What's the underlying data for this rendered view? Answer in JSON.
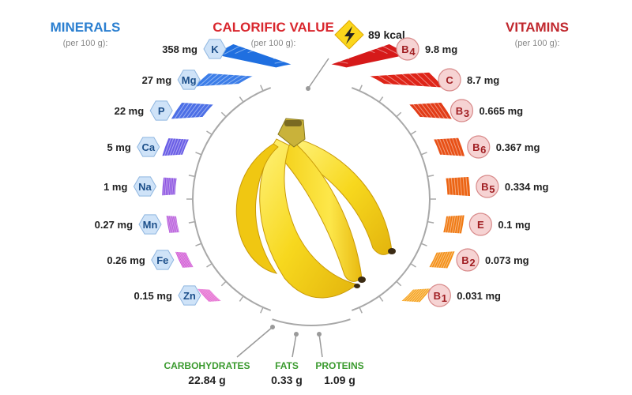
{
  "minerals": {
    "title": "MINERALS",
    "subtitle": "(per 100 g):",
    "items": [
      {
        "symbol": "K",
        "value": "358 mg",
        "amount": 358
      },
      {
        "symbol": "Mg",
        "value": "27 mg",
        "amount": 27
      },
      {
        "symbol": "P",
        "value": "22 mg",
        "amount": 22
      },
      {
        "symbol": "Ca",
        "value": "5 mg",
        "amount": 5
      },
      {
        "symbol": "Na",
        "value": "1 mg",
        "amount": 1
      },
      {
        "symbol": "Mn",
        "value": "0.27 mg",
        "amount": 0.27
      },
      {
        "symbol": "Fe",
        "value": "0.26 mg",
        "amount": 0.26
      },
      {
        "symbol": "Zn",
        "value": "0.15 mg",
        "amount": 0.15
      }
    ]
  },
  "calorific": {
    "title": "CALORIFIC VALUE",
    "subtitle": "(per 100 g):",
    "value": "89 kcal",
    "icon": "lightning-icon"
  },
  "vitamins": {
    "title": "VITAMINS",
    "subtitle": "(per 100 g):",
    "items": [
      {
        "symbol": "B",
        "sub": "4",
        "value": "9.8 mg",
        "amount": 9.8
      },
      {
        "symbol": "C",
        "sub": "",
        "value": "8.7 mg",
        "amount": 8.7
      },
      {
        "symbol": "B",
        "sub": "3",
        "value": "0.665 mg",
        "amount": 0.665
      },
      {
        "symbol": "B",
        "sub": "6",
        "value": "0.367 mg",
        "amount": 0.367
      },
      {
        "symbol": "B",
        "sub": "5",
        "value": "0.334 mg",
        "amount": 0.334
      },
      {
        "symbol": "E",
        "sub": "",
        "value": "0.1 mg",
        "amount": 0.1
      },
      {
        "symbol": "B",
        "sub": "2",
        "value": "0.073 mg",
        "amount": 0.073
      },
      {
        "symbol": "B",
        "sub": "1",
        "value": "0.031 mg",
        "amount": 0.031
      }
    ]
  },
  "nutrients": [
    {
      "label": "CARBOHYDRATES",
      "value": "22.84 g"
    },
    {
      "label": "FATS",
      "value": "0.33 g"
    },
    {
      "label": "PROTEINS",
      "value": "1.09 g"
    }
  ],
  "colors": {
    "minerals_title": "#2b7fd0",
    "calorific_title": "#d9272e",
    "vitamins_title": "#c0272d",
    "nutrient_label": "#3a9a2e",
    "mineral_gradient": [
      "#1f6fe0",
      "#3b7de8",
      "#4c6fe6",
      "#6a5ee6",
      "#8a50e0",
      "#b04ad8",
      "#cc48d0",
      "#e050c8"
    ],
    "vitamin_gradient": [
      "#d61a1a",
      "#de2418",
      "#e23b16",
      "#e85016",
      "#ec6414",
      "#f07a14",
      "#f49018",
      "#f6a21c"
    ],
    "badge_blue": "#cfe3f8",
    "badge_red": "#f6d3d3",
    "tick_gray": "#9a9a9a"
  }
}
